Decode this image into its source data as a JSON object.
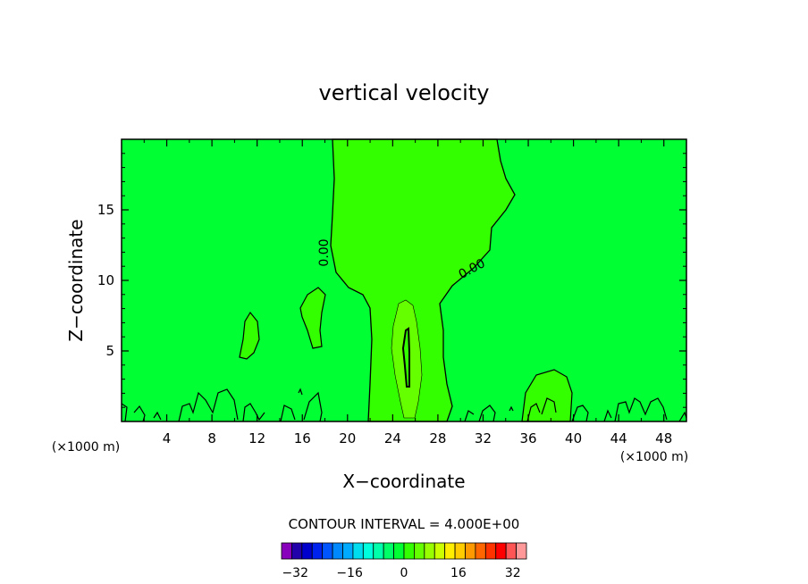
{
  "chart_data": {
    "type": "heatmap",
    "title": "vertical velocity",
    "xlabel": "X−coordinate",
    "ylabel": "Z−coordinate",
    "x_unit_left": "(×1000 m)",
    "x_unit_right": "(×1000 m)",
    "xlim": [
      0,
      50
    ],
    "ylim": [
      0,
      20
    ],
    "x_ticks": [
      4,
      8,
      12,
      16,
      20,
      24,
      28,
      32,
      36,
      40,
      44,
      48
    ],
    "x_tick_labels": [
      "4",
      "8",
      "12",
      "16",
      "20",
      "24",
      "28",
      "32",
      "36",
      "40",
      "44",
      "48"
    ],
    "y_ticks": [
      5,
      10,
      15
    ],
    "y_tick_labels": [
      "5",
      "10",
      "15"
    ],
    "background_color": "#00ff33",
    "contour_labels": [
      "0.00",
      "0.00"
    ],
    "contour_interval_text": "CONTOUR INTERVAL = 4.000E+00",
    "colorbar": {
      "min": -36,
      "max": 36,
      "step": 4,
      "colors": [
        "#8800bb",
        "#2200aa",
        "#0000cc",
        "#0022ee",
        "#0055ff",
        "#0088ff",
        "#00aaff",
        "#00ddee",
        "#00ffdd",
        "#00ffaa",
        "#00ff66",
        "#00ff33",
        "#33ff00",
        "#66ff00",
        "#99ff00",
        "#ccff00",
        "#ffee00",
        "#ffcc00",
        "#ff9900",
        "#ff6600",
        "#ff3300",
        "#ff0000",
        "#ff5555",
        "#ff9999"
      ],
      "tick_values": [
        -32,
        -16,
        0,
        16,
        32
      ],
      "tick_labels": [
        "−32",
        "−16",
        "0",
        "16",
        "32"
      ]
    },
    "regions": [
      {
        "name": "zero-contour-region",
        "value": 0,
        "color": "#33ff00"
      },
      {
        "name": "positive-core-region",
        "value": 4,
        "color": "#66ff00"
      },
      {
        "name": "strong-updraft-region",
        "value": 8,
        "color": "#33ff00"
      }
    ]
  }
}
